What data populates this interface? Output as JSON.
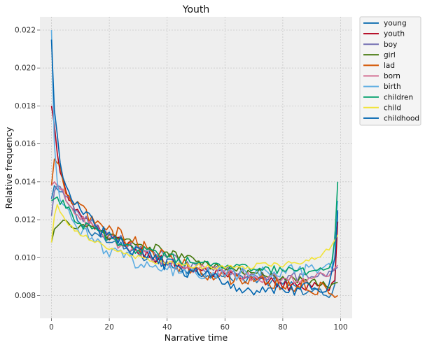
{
  "chart_data": {
    "type": "line",
    "title": "Youth",
    "xlabel": "Narrative time",
    "ylabel": "Relative frequency",
    "xlim": [
      -4,
      104
    ],
    "ylim": [
      0.0068,
      0.0227
    ],
    "xticks": [
      0,
      20,
      40,
      60,
      80,
      100
    ],
    "xtick_labels": [
      "0",
      "20",
      "40",
      "60",
      "80",
      "100"
    ],
    "yticks": [
      0.008,
      0.01,
      0.012,
      0.014,
      0.016,
      0.018,
      0.02,
      0.022
    ],
    "ytick_labels": [
      "0.008",
      "0.010",
      "0.012",
      "0.014",
      "0.016",
      "0.018",
      "0.020",
      "0.022"
    ],
    "grid": true,
    "legend_position": "outside-top-right",
    "series": [
      {
        "name": "young",
        "color": "#1f77b4",
        "noise": 0.00028,
        "anchors": [
          [
            0,
            0.0131
          ],
          [
            1,
            0.0138
          ],
          [
            2,
            0.0136
          ],
          [
            5,
            0.013
          ],
          [
            10,
            0.0118
          ],
          [
            20,
            0.0108
          ],
          [
            30,
            0.0102
          ],
          [
            40,
            0.0096
          ],
          [
            50,
            0.0093
          ],
          [
            60,
            0.009
          ],
          [
            70,
            0.0089
          ],
          [
            80,
            0.0086
          ],
          [
            90,
            0.0082
          ],
          [
            95,
            0.008
          ],
          [
            97,
            0.0081
          ],
          [
            98,
            0.0086
          ],
          [
            99,
            0.0124
          ]
        ]
      },
      {
        "name": "youth",
        "color": "#b2001b",
        "noise": 0.0003,
        "anchors": [
          [
            0,
            0.018
          ],
          [
            1,
            0.017
          ],
          [
            2,
            0.0155
          ],
          [
            3,
            0.0145
          ],
          [
            5,
            0.0135
          ],
          [
            8,
            0.0125
          ],
          [
            15,
            0.0115
          ],
          [
            25,
            0.0108
          ],
          [
            35,
            0.01
          ],
          [
            45,
            0.0095
          ],
          [
            55,
            0.0092
          ],
          [
            65,
            0.0089
          ],
          [
            75,
            0.0087
          ],
          [
            85,
            0.0085
          ],
          [
            95,
            0.0084
          ],
          [
            98,
            0.0088
          ],
          [
            99,
            0.0119
          ]
        ]
      },
      {
        "name": "boy",
        "color": "#7570b3",
        "noise": 0.00028,
        "anchors": [
          [
            0,
            0.0122
          ],
          [
            1,
            0.0135
          ],
          [
            2,
            0.0138
          ],
          [
            5,
            0.0132
          ],
          [
            10,
            0.0122
          ],
          [
            20,
            0.0112
          ],
          [
            30,
            0.0105
          ],
          [
            40,
            0.01
          ],
          [
            50,
            0.0096
          ],
          [
            60,
            0.0093
          ],
          [
            70,
            0.0091
          ],
          [
            80,
            0.009
          ],
          [
            90,
            0.009
          ],
          [
            95,
            0.009
          ],
          [
            99,
            0.0095
          ]
        ]
      },
      {
        "name": "girl",
        "color": "#43770a",
        "noise": 0.00025,
        "anchors": [
          [
            0,
            0.0108
          ],
          [
            1,
            0.0115
          ],
          [
            3,
            0.0118
          ],
          [
            6,
            0.0118
          ],
          [
            10,
            0.0117
          ],
          [
            20,
            0.0112
          ],
          [
            30,
            0.0107
          ],
          [
            40,
            0.0103
          ],
          [
            50,
            0.0098
          ],
          [
            60,
            0.0094
          ],
          [
            70,
            0.0092
          ],
          [
            80,
            0.009
          ],
          [
            90,
            0.0088
          ],
          [
            95,
            0.0085
          ],
          [
            99,
            0.0087
          ]
        ]
      },
      {
        "name": "lad",
        "color": "#d35400",
        "noise": 0.00045,
        "anchors": [
          [
            0,
            0.0138
          ],
          [
            1,
            0.0152
          ],
          [
            2,
            0.015
          ],
          [
            4,
            0.014
          ],
          [
            8,
            0.0128
          ],
          [
            15,
            0.0118
          ],
          [
            25,
            0.011
          ],
          [
            35,
            0.0103
          ],
          [
            45,
            0.0096
          ],
          [
            55,
            0.0092
          ],
          [
            65,
            0.0089
          ],
          [
            75,
            0.0087
          ],
          [
            85,
            0.0085
          ],
          [
            95,
            0.0084
          ],
          [
            98,
            0.0079
          ],
          [
            99,
            0.008
          ]
        ]
      },
      {
        "name": "born",
        "color": "#d36f93",
        "noise": 0.0003,
        "anchors": [
          [
            0,
            0.0138
          ],
          [
            1,
            0.014
          ],
          [
            3,
            0.0136
          ],
          [
            6,
            0.0128
          ],
          [
            10,
            0.012
          ],
          [
            20,
            0.011
          ],
          [
            30,
            0.0103
          ],
          [
            40,
            0.0098
          ],
          [
            50,
            0.0094
          ],
          [
            60,
            0.0092
          ],
          [
            70,
            0.009
          ],
          [
            80,
            0.0089
          ],
          [
            90,
            0.0089
          ],
          [
            95,
            0.009
          ],
          [
            99,
            0.0096
          ]
        ]
      },
      {
        "name": "birth",
        "color": "#5dade2",
        "noise": 0.0004,
        "anchors": [
          [
            0,
            0.022
          ],
          [
            1,
            0.016
          ],
          [
            2,
            0.014
          ],
          [
            4,
            0.0128
          ],
          [
            8,
            0.0118
          ],
          [
            15,
            0.0108
          ],
          [
            25,
            0.01
          ],
          [
            35,
            0.0095
          ],
          [
            45,
            0.0092
          ],
          [
            55,
            0.0091
          ],
          [
            65,
            0.0091
          ],
          [
            75,
            0.0092
          ],
          [
            85,
            0.0093
          ],
          [
            92,
            0.0092
          ],
          [
            97,
            0.0094
          ],
          [
            99,
            0.013
          ]
        ]
      },
      {
        "name": "children",
        "color": "#00a06b",
        "noise": 0.00025,
        "anchors": [
          [
            0,
            0.013
          ],
          [
            2,
            0.0132
          ],
          [
            5,
            0.0126
          ],
          [
            10,
            0.0118
          ],
          [
            20,
            0.011
          ],
          [
            30,
            0.0104
          ],
          [
            40,
            0.01
          ],
          [
            50,
            0.0097
          ],
          [
            60,
            0.0095
          ],
          [
            70,
            0.0094
          ],
          [
            80,
            0.0093
          ],
          [
            90,
            0.0093
          ],
          [
            95,
            0.0094
          ],
          [
            97,
            0.0098
          ],
          [
            98,
            0.011
          ],
          [
            99,
            0.014
          ]
        ]
      },
      {
        "name": "child",
        "color": "#f1e33a",
        "noise": 0.00015,
        "anchors": [
          [
            0,
            0.0108
          ],
          [
            1,
            0.0122
          ],
          [
            2,
            0.0128
          ],
          [
            4,
            0.0122
          ],
          [
            8,
            0.0114
          ],
          [
            15,
            0.0108
          ],
          [
            25,
            0.0102
          ],
          [
            35,
            0.0098
          ],
          [
            45,
            0.0096
          ],
          [
            55,
            0.0095
          ],
          [
            65,
            0.0095
          ],
          [
            75,
            0.0096
          ],
          [
            85,
            0.0097
          ],
          [
            92,
            0.01
          ],
          [
            96,
            0.0104
          ],
          [
            99,
            0.0112
          ]
        ]
      },
      {
        "name": "childhood",
        "color": "#0065b0",
        "noise": 0.00038,
        "anchors": [
          [
            0,
            0.0215
          ],
          [
            1,
            0.0178
          ],
          [
            2,
            0.0165
          ],
          [
            3,
            0.015
          ],
          [
            5,
            0.0138
          ],
          [
            8,
            0.0128
          ],
          [
            15,
            0.0117
          ],
          [
            25,
            0.0107
          ],
          [
            35,
            0.0099
          ],
          [
            45,
            0.0094
          ],
          [
            55,
            0.009
          ],
          [
            60,
            0.0086
          ],
          [
            65,
            0.0084
          ],
          [
            75,
            0.0084
          ],
          [
            85,
            0.0084
          ],
          [
            92,
            0.0083
          ],
          [
            96,
            0.0086
          ],
          [
            98,
            0.01
          ],
          [
            99,
            0.0125
          ]
        ]
      }
    ]
  }
}
